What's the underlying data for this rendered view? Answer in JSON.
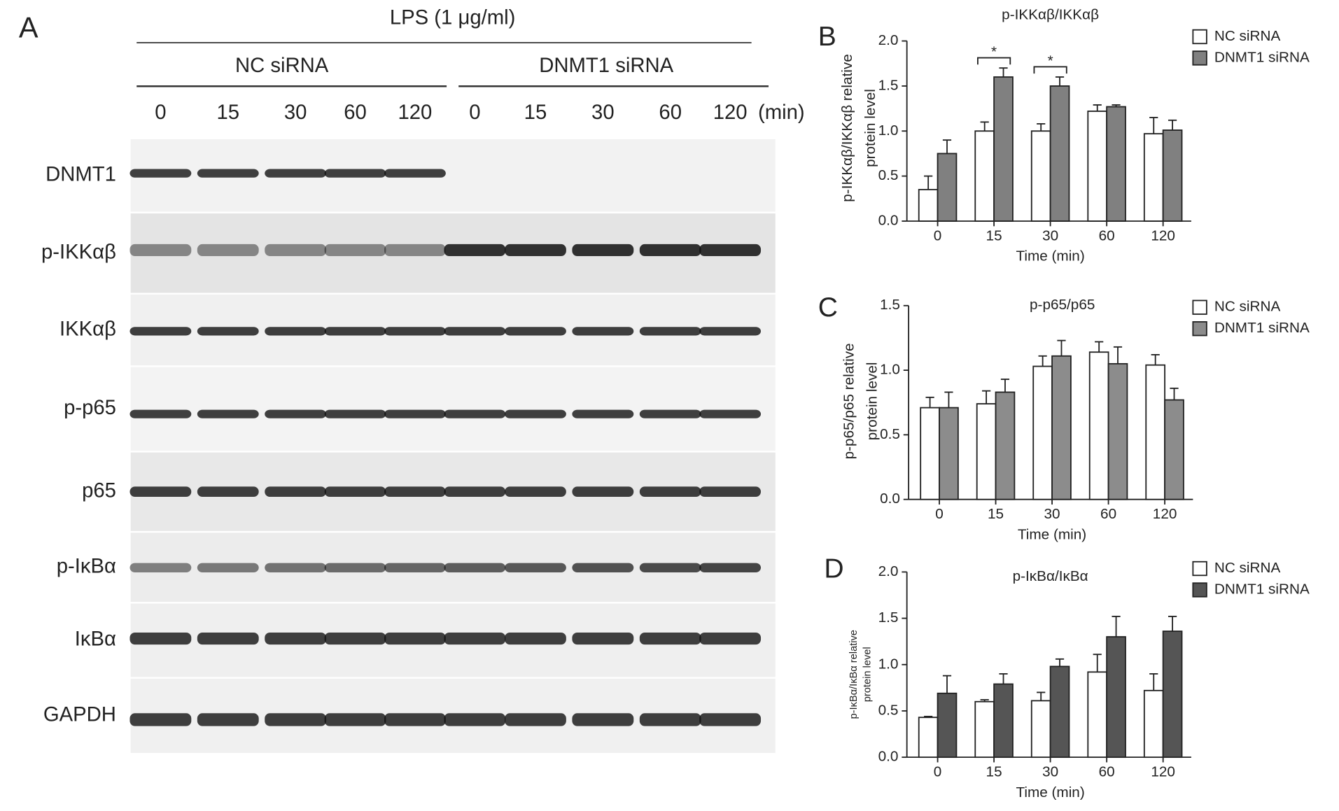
{
  "blot": {
    "letter": "A",
    "treatment": "LPS (1 μg/ml)",
    "groups": [
      "NC siRNA",
      "DNMT1 siRNA"
    ],
    "lanes": [
      "0",
      "15",
      "30",
      "60",
      "120",
      "0",
      "15",
      "30",
      "60",
      "120"
    ],
    "lane_unit": "(min)",
    "rows": [
      "DNMT1",
      "p-IKKαβ",
      "IKKαβ",
      "p-p65",
      "p65",
      "p-IκBα",
      "IκBα",
      "GAPDH"
    ]
  },
  "chart_data": [
    {
      "type": "bar",
      "letter": "B",
      "title": "p-IKKαβ/IKKαβ",
      "ylabel": [
        "p-IKKαβ/IKKαβ relative",
        "protein level"
      ],
      "xlabel": "Time (min)",
      "categories": [
        "0",
        "15",
        "30",
        "60",
        "120"
      ],
      "series": [
        {
          "name": "NC siRNA",
          "color": "#ffffff",
          "values": [
            0.35,
            1.0,
            1.0,
            1.22,
            0.97
          ],
          "errors": [
            0.15,
            0.1,
            0.08,
            0.07,
            0.18
          ]
        },
        {
          "name": "DNMT1 siRNA",
          "color": "#808080",
          "values": [
            0.75,
            1.6,
            1.5,
            1.27,
            1.01
          ],
          "errors": [
            0.15,
            0.1,
            0.1,
            0.02,
            0.11
          ]
        }
      ],
      "annotations": [
        {
          "text": "*",
          "category": "15"
        },
        {
          "text": "*",
          "category": "30"
        }
      ],
      "ylim": [
        0,
        2
      ],
      "yticks": [
        {
          "value": 0,
          "label": "0.0"
        },
        {
          "value": 0.5,
          "label": "0.5"
        },
        {
          "value": 1,
          "label": "1.0"
        },
        {
          "value": 1.5,
          "label": "1.5"
        },
        {
          "value": 2,
          "label": "2.0"
        }
      ]
    },
    {
      "type": "bar",
      "letter": "C",
      "title": "p-p65/p65",
      "ylabel": [
        "p-p65/p65 relative",
        "protein level"
      ],
      "xlabel": "Time (min)",
      "categories": [
        "0",
        "15",
        "30",
        "60",
        "120"
      ],
      "series": [
        {
          "name": "NC siRNA",
          "color": "#ffffff",
          "values": [
            0.71,
            0.74,
            1.03,
            1.14,
            1.04
          ],
          "errors": [
            0.08,
            0.1,
            0.08,
            0.08,
            0.08
          ]
        },
        {
          "name": "DNMT1 siRNA",
          "color": "#8c8c8c",
          "values": [
            0.71,
            0.83,
            1.11,
            1.05,
            0.77
          ],
          "errors": [
            0.12,
            0.1,
            0.12,
            0.13,
            0.09
          ]
        }
      ],
      "annotations": [],
      "ylim": [
        0,
        1.5
      ],
      "yticks": [
        {
          "value": 0,
          "label": "0.0"
        },
        {
          "value": 0.5,
          "label": "0.5"
        },
        {
          "value": 1,
          "label": "1.0"
        },
        {
          "value": 1.5,
          "label": "1.5"
        }
      ]
    },
    {
      "type": "bar",
      "letter": "D",
      "title": "p-IκBα/IκBα",
      "ylabel": [
        "p-IκBα/IκBα relative",
        "protein level"
      ],
      "xlabel": "Time (min)",
      "categories": [
        "0",
        "15",
        "30",
        "60",
        "120"
      ],
      "series": [
        {
          "name": "NC siRNA",
          "color": "#ffffff",
          "values": [
            0.43,
            0.6,
            0.61,
            0.92,
            0.72
          ],
          "errors": [
            0.01,
            0.02,
            0.09,
            0.19,
            0.18
          ]
        },
        {
          "name": "DNMT1 siRNA",
          "color": "#555555",
          "values": [
            0.69,
            0.79,
            0.98,
            1.3,
            1.36
          ],
          "errors": [
            0.19,
            0.11,
            0.08,
            0.22,
            0.16
          ]
        }
      ],
      "annotations": [],
      "ylim": [
        0,
        2
      ],
      "yticks": [
        {
          "value": 0,
          "label": "0.0"
        },
        {
          "value": 0.5,
          "label": "0.5"
        },
        {
          "value": 1,
          "label": "1.0"
        },
        {
          "value": 1.5,
          "label": "1.5"
        },
        {
          "value": 2,
          "label": "2.0"
        }
      ]
    }
  ]
}
